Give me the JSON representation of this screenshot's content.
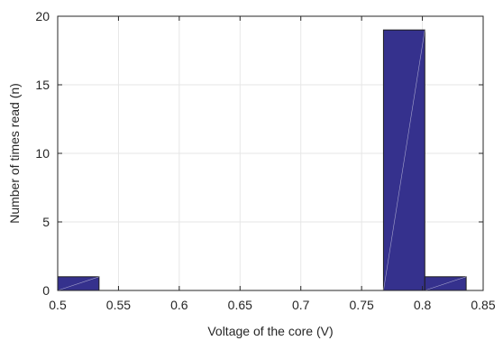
{
  "chart_data": {
    "type": "histogram",
    "xlabel": "Voltage of the core (V)",
    "ylabel": "Number of times read (n)",
    "xlim": [
      0.5,
      0.85
    ],
    "ylim": [
      0,
      20
    ],
    "xticks": [
      "0.5",
      "0.55",
      "0.6",
      "0.65",
      "0.7",
      "0.75",
      "0.8",
      "0.85"
    ],
    "yticks": [
      "0",
      "5",
      "10",
      "15",
      "20"
    ],
    "grid": true,
    "bins": [
      {
        "x0": 0.5,
        "x1": 0.534,
        "count": 1
      },
      {
        "x0": 0.534,
        "x1": 0.568,
        "count": 0
      },
      {
        "x0": 0.568,
        "x1": 0.602,
        "count": 0
      },
      {
        "x0": 0.602,
        "x1": 0.636,
        "count": 0
      },
      {
        "x0": 0.636,
        "x1": 0.67,
        "count": 0
      },
      {
        "x0": 0.67,
        "x1": 0.703,
        "count": 0
      },
      {
        "x0": 0.703,
        "x1": 0.737,
        "count": 0
      },
      {
        "x0": 0.737,
        "x1": 0.768,
        "count": 0
      },
      {
        "x0": 0.768,
        "x1": 0.802,
        "count": 19
      },
      {
        "x0": 0.802,
        "x1": 0.836,
        "count": 1
      }
    ],
    "colors": {
      "bar_fill": "#35318d",
      "bar_edge": "#1f1f1f",
      "grid": "#e6e6e6",
      "axis": "#262626"
    }
  }
}
